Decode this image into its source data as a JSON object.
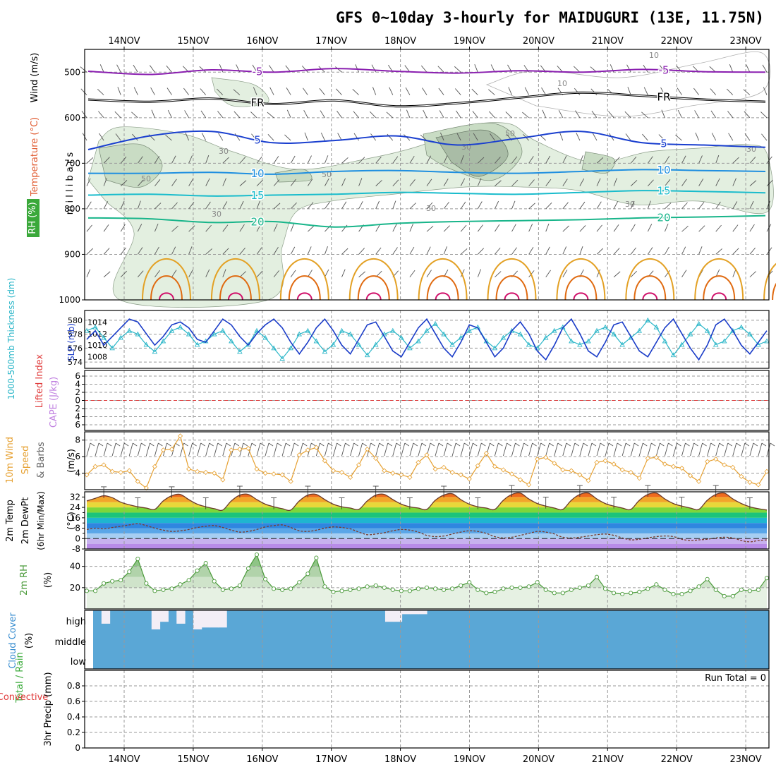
{
  "title": "GFS 0~10day 3-hourly for MAIDUGURI (13E, 11.75N)",
  "colors": {
    "axis": "#000000",
    "grid": "#9a9a9a",
    "rh_fill_light": "#e3efe0",
    "rh_fill_mid": "#c9dcc4",
    "rh_fill_dark": "#a9bca6",
    "temp_minus5": "#8a1fb0",
    "temp_freezing": "#000000",
    "temp_5": "#1a3fcf",
    "temp_10": "#1f8fe0",
    "temp_15": "#1abccc",
    "temp_20": "#18b58a",
    "temp_25": "#e3a125",
    "temp_30": "#e06a10",
    "temp_35": "#d0106a",
    "thickness": "#2ab6c8",
    "slp": "#1a3cc8",
    "lifted_zero": "#e03c3c",
    "wind10": "#e6a030",
    "barb": "#555555",
    "rh2m": "#4a9a3a",
    "cloud": "#5aa7d6",
    "cloud_gap": "#f3eef6",
    "precip_total": "#3aaa3a",
    "precip_convective": "#e03c3c",
    "cape": "#c080e0"
  },
  "time_axis": {
    "dates": [
      "14NOV",
      "15NOV",
      "16NOV",
      "17NOV",
      "18NOV",
      "19NOV",
      "20NOV",
      "21NOV",
      "22NOV",
      "23NOV"
    ],
    "top_labels": [
      "14NOV",
      "15NOV",
      "16NOV",
      "17NOV",
      "18NOV",
      "19NOV",
      "20NOV",
      "21NOV",
      "22NOV",
      "23NOV"
    ],
    "bottom_labels": [
      "14NOV",
      "15NOV",
      "16NOV",
      "17NOV",
      "18NOV",
      "19NOV",
      "20NOV",
      "21NOV",
      "22NOV",
      "23NOV"
    ]
  },
  "chart_data": [
    {
      "type": "heatmap",
      "panel": "upper-air",
      "ylabel": "millibars",
      "side_labels": {
        "wind": "Wind (m/s)",
        "temperature": "Temperature (°C)",
        "rh": "RH (%)"
      },
      "y_ticks": [
        500,
        600,
        700,
        800,
        900,
        1000
      ],
      "ylim": [
        450,
        1000
      ],
      "rh_contour_labels": [
        "10",
        "30",
        "50"
      ],
      "temperature_contours": [
        {
          "label": "-5",
          "pressure": [
            498,
            505,
            495,
            500,
            492,
            498,
            502,
            497,
            500,
            494,
            499,
            500
          ],
          "color_key": "temp_minus5"
        },
        {
          "label": "FR",
          "pressure": [
            560,
            565,
            558,
            570,
            562,
            575,
            568,
            556,
            545,
            552,
            560,
            565
          ],
          "color_key": "temp_freezing"
        },
        {
          "label": "5",
          "pressure": [
            670,
            640,
            630,
            655,
            650,
            640,
            660,
            645,
            630,
            655,
            660,
            665
          ],
          "color_key": "temp_5"
        },
        {
          "label": "10",
          "pressure": [
            722,
            722,
            720,
            724,
            718,
            716,
            720,
            722,
            718,
            714,
            716,
            718
          ],
          "color_key": "temp_10"
        },
        {
          "label": "15",
          "pressure": [
            770,
            768,
            772,
            770,
            768,
            764,
            766,
            768,
            764,
            760,
            762,
            765
          ],
          "color_key": "temp_15"
        },
        {
          "label": "20",
          "pressure": [
            820,
            822,
            830,
            828,
            840,
            832,
            828,
            826,
            824,
            820,
            818,
            815
          ],
          "color_key": "temp_20"
        }
      ]
    },
    {
      "type": "line",
      "panel": "thickness-slp",
      "ylabel_left": "1000-500mb Thickness (dm)",
      "ylabel_right": "SLP (mb)",
      "thickness_ticks": [
        574,
        576,
        578,
        580
      ],
      "slp_ticks": [
        1008,
        1010,
        1012,
        1014
      ],
      "series": [
        {
          "key": "thickness",
          "values": [
            578.5,
            579.0,
            577.5,
            576.0,
            577.5,
            578.5,
            578.0,
            576.5,
            575.5,
            577.0,
            578.5,
            579.0,
            578.0,
            576.5,
            577.0,
            578.0,
            578.5,
            577.0,
            575.5,
            576.5,
            578.5,
            577.5,
            576.0,
            574.5,
            576.0,
            578.0,
            578.5,
            577.0,
            575.5,
            576.5,
            578.5,
            578.0,
            576.5,
            575.0,
            576.5,
            578.0,
            578.5,
            577.5,
            576.0,
            577.0,
            578.5,
            579.5,
            578.0,
            576.5,
            577.5,
            578.5,
            579.0,
            577.0,
            576.0,
            577.5,
            578.5,
            578.0,
            576.5,
            576.0,
            577.5,
            578.5,
            579.0,
            577.0,
            576.5,
            577.0,
            578.5,
            579.0,
            578.0,
            576.5,
            577.5,
            578.5,
            580.0,
            579.0,
            577.0,
            575.0,
            576.5,
            578.0,
            579.5,
            578.5,
            576.5,
            577.0,
            578.5,
            579.0,
            578.0,
            576.5,
            577.0
          ]
        },
        {
          "key": "slp",
          "values": [
            1011.0,
            1012.5,
            1010.0,
            1011.5,
            1013.0,
            1014.5,
            1014.0,
            1012.0,
            1010.0,
            1011.5,
            1013.5,
            1014.0,
            1013.0,
            1011.0,
            1010.5,
            1012.5,
            1014.5,
            1013.5,
            1011.5,
            1010.0,
            1012.0,
            1013.5,
            1014.5,
            1013.0,
            1010.5,
            1008.5,
            1010.5,
            1013.0,
            1014.5,
            1012.5,
            1010.0,
            1008.5,
            1011.0,
            1013.5,
            1014.0,
            1011.5,
            1009.0,
            1008.0,
            1010.5,
            1013.0,
            1014.5,
            1012.0,
            1009.5,
            1008.0,
            1010.5,
            1013.5,
            1013.0,
            1010.5,
            1008.0,
            1009.5,
            1012.5,
            1014.0,
            1012.0,
            1009.0,
            1007.5,
            1010.0,
            1013.0,
            1014.5,
            1012.0,
            1009.0,
            1008.0,
            1010.5,
            1013.5,
            1014.0,
            1011.5,
            1009.0,
            1008.0,
            1010.5,
            1013.0,
            1014.5,
            1012.0,
            1009.5,
            1007.5,
            1010.0,
            1013.5,
            1014.5,
            1012.5,
            1010.0,
            1008.5,
            1010.5,
            1012.5
          ]
        }
      ]
    },
    {
      "type": "line",
      "panel": "lifted-cape",
      "ylabel_left": "Lifted Index",
      "ylabel_right": "CAPE (J/kg)",
      "y_ticks": [
        -6,
        -4,
        -2,
        0,
        2,
        4,
        6
      ],
      "y_tick_labels": [
        "6",
        "4",
        "2",
        "0",
        "2",
        "4",
        "6"
      ],
      "zero_line": 0
    },
    {
      "type": "line",
      "panel": "wind10m",
      "ylabel": "10m Wind Speed & Barbs (m/s)",
      "label_wind": "10m Wind",
      "label_speed": "Speed",
      "label_barbs": "& Barbs",
      "unit": "(m/s)",
      "y_ticks": [
        4,
        6,
        8
      ],
      "ylim": [
        2,
        9
      ],
      "series": [
        {
          "key": "wind10",
          "values": [
            3.8,
            4.8,
            5.0,
            4.2,
            4.1,
            4.3,
            3.0,
            2.2,
            4.8,
            6.8,
            6.9,
            8.5,
            4.5,
            4.2,
            4.1,
            4.0,
            3.2,
            6.8,
            6.9,
            7.0,
            4.5,
            4.0,
            3.9,
            3.8,
            3.0,
            6.2,
            6.8,
            7.1,
            5.5,
            4.3,
            4.1,
            3.5,
            5.0,
            6.9,
            5.8,
            4.3,
            4.0,
            3.8,
            3.5,
            5.3,
            6.2,
            4.5,
            4.7,
            4.1,
            3.8,
            3.3,
            4.9,
            6.4,
            4.8,
            4.4,
            3.9,
            3.2,
            2.6,
            5.7,
            5.9,
            5.2,
            4.4,
            4.3,
            3.8,
            3.1,
            5.3,
            5.5,
            5.1,
            4.4,
            4.1,
            3.4,
            5.8,
            5.9,
            5.1,
            4.8,
            4.6,
            3.7,
            3.0,
            5.4,
            5.7,
            5.0,
            4.7,
            3.6,
            2.9,
            2.6,
            4.2
          ]
        }
      ]
    },
    {
      "type": "area",
      "panel": "temp2m",
      "label_temp": "2m Temp",
      "label_dewpt": "2m DewPt",
      "label_minmax": "(6hr Min/Max)",
      "unit": "(°C)",
      "y_ticks": [
        -8,
        0,
        8,
        16,
        24,
        32
      ],
      "y_tick_labels": [
        "-8",
        "0",
        "8",
        "16",
        "24",
        "32"
      ],
      "extra_y_ticks": [
        4,
        12,
        20
      ],
      "ylim": [
        -8,
        36
      ],
      "series": [
        {
          "key": "temp",
          "values": [
            29.0,
            31.0,
            33.0,
            31.5,
            28.0,
            26.0,
            24.5,
            23.5,
            22.5,
            29.0,
            33.0,
            34.0,
            30.0,
            26.5,
            24.5,
            23.0,
            22.0,
            29.0,
            33.5,
            34.0,
            30.0,
            26.5,
            24.5,
            23.0,
            22.0,
            29.0,
            33.5,
            34.0,
            30.0,
            26.5,
            24.5,
            23.5,
            22.5,
            29.0,
            33.5,
            34.0,
            30.0,
            26.5,
            24.5,
            23.5,
            22.5,
            29.5,
            33.5,
            34.5,
            30.0,
            26.5,
            24.5,
            23.5,
            22.5,
            29.5,
            34.0,
            35.0,
            30.5,
            27.0,
            25.0,
            23.5,
            22.5,
            29.5,
            34.0,
            35.0,
            30.5,
            27.0,
            25.0,
            23.5,
            22.5,
            29.5,
            34.0,
            35.0,
            30.5,
            27.0,
            25.0,
            23.5,
            22.5,
            29.5,
            34.0,
            35.0,
            30.5,
            27.0,
            24.5,
            23.0,
            22.0
          ]
        },
        {
          "key": "dewpt",
          "values": [
            7.0,
            8.0,
            7.5,
            8.5,
            9.5,
            10.5,
            11.5,
            10.0,
            8.0,
            6.5,
            5.5,
            6.0,
            7.0,
            8.5,
            9.5,
            10.0,
            8.5,
            6.5,
            5.0,
            5.5,
            7.0,
            9.0,
            10.0,
            10.5,
            8.5,
            6.0,
            5.5,
            6.5,
            8.0,
            9.0,
            8.5,
            7.5,
            5.0,
            3.0,
            3.5,
            4.5,
            6.0,
            7.0,
            6.5,
            5.0,
            2.5,
            1.5,
            2.0,
            3.5,
            5.0,
            6.0,
            5.5,
            4.0,
            1.5,
            0.5,
            1.0,
            2.5,
            4.0,
            5.5,
            5.0,
            3.5,
            1.0,
            0.5,
            1.0,
            2.0,
            3.0,
            3.5,
            2.5,
            0.5,
            -1.0,
            -0.5,
            0.5,
            1.5,
            2.0,
            1.5,
            -0.5,
            -1.5,
            -1.0,
            -0.5,
            0.5,
            1.0,
            0.5,
            -1.5,
            -2.5,
            -1.5,
            -1.0
          ]
        }
      ]
    },
    {
      "type": "area",
      "panel": "rh2m",
      "ylabel": "2m RH",
      "unit": "(%)",
      "y_ticks": [
        20,
        40
      ],
      "ylim": [
        0,
        55
      ],
      "series": [
        {
          "key": "rh2m",
          "values": [
            17,
            17,
            24,
            26,
            27,
            35,
            47,
            24,
            17,
            18,
            19,
            23,
            27,
            36,
            43,
            26,
            18,
            19,
            22,
            38,
            51,
            28,
            19,
            18,
            19,
            25,
            33,
            48,
            21,
            16,
            17,
            18,
            19,
            21,
            22,
            20,
            18,
            17,
            17,
            19,
            20,
            19,
            18,
            19,
            22,
            25,
            18,
            15,
            16,
            19,
            20,
            20,
            21,
            25,
            18,
            15,
            15,
            18,
            20,
            22,
            30,
            19,
            15,
            14,
            15,
            16,
            19,
            23,
            18,
            14,
            14,
            17,
            21,
            28,
            18,
            12,
            12,
            18,
            17,
            18,
            29
          ]
        }
      ]
    },
    {
      "type": "bar",
      "panel": "cloud",
      "ylabel": "Cloud Cover",
      "unit": "(%)",
      "level_labels": [
        "high",
        "middle",
        "low"
      ],
      "high_cover": [
        100,
        30,
        100,
        100,
        100,
        100,
        100,
        0,
        40,
        100,
        30,
        100,
        0,
        10,
        10,
        10,
        100,
        100,
        100,
        100,
        100,
        100,
        100,
        100,
        100,
        100,
        100,
        100,
        100,
        100,
        100,
        100,
        100,
        100,
        100,
        40,
        40,
        80,
        80,
        80,
        100,
        100,
        100,
        100,
        100,
        100,
        100,
        100,
        100,
        100,
        100,
        100,
        100,
        100,
        100,
        100,
        100,
        100,
        100,
        100,
        100,
        100,
        100,
        100,
        100,
        100,
        100,
        100,
        100,
        100,
        100,
        100,
        100,
        100,
        100,
        100,
        100,
        100,
        100,
        100,
        100
      ]
    },
    {
      "type": "bar",
      "panel": "precip",
      "ylabel": "3hr Precip (mm)",
      "label_total_rain": "Total / Rain",
      "label_convective": "Convective",
      "run_total": "Run Total = 0",
      "y_ticks": [
        0,
        0.2,
        0.4,
        0.6,
        0.8
      ],
      "y_tick_labels": [
        "0",
        "0.2",
        "0.4",
        "0.6",
        "0.8"
      ],
      "ylim": [
        0,
        1
      ],
      "values": []
    }
  ]
}
